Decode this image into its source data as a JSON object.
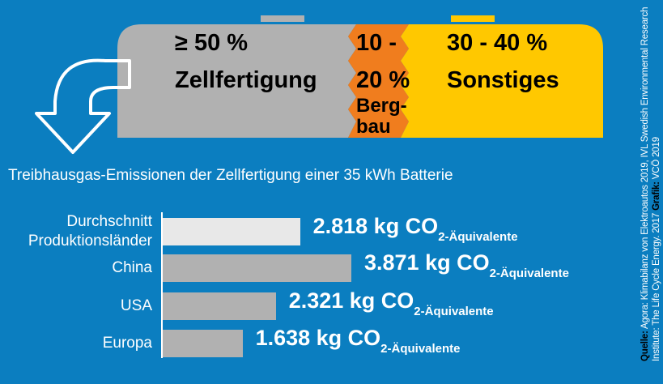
{
  "battery": {
    "gray": [
      "≥ 50 %",
      "Zellfertigung"
    ],
    "orange": [
      "10 -",
      "20 %",
      "Berg-",
      "bau"
    ],
    "yellow": [
      "30 - 40 %",
      "Sonstiges"
    ]
  },
  "chart_data": {
    "type": "bar",
    "orientation": "horizontal",
    "title": "Treibhausgas-Emissionen der Zellfertigung einer 35 kWh Batterie",
    "categories": [
      "Durchschnitt\nProduktionsländer",
      "China",
      "USA",
      "Europa"
    ],
    "values": [
      2818,
      3871,
      2321,
      1638
    ],
    "value_labels": [
      "2.818 kg CO",
      "3.871 kg CO",
      "2.321 kg CO",
      "1.638 kg CO"
    ],
    "value_label_subscript": "2-Äquivalente",
    "colors": [
      "#e8e8e8",
      "#b1b1b1",
      "#b1b1b1",
      "#b1b1b1"
    ]
  },
  "source": {
    "label": "Quelle:",
    "text": "Agora: Klimabilanz von Elektroautos 2019, IVL Swedish Environmental Research Institute: The Life Cycle Energy. 2017",
    "credit_label": "Grafik:",
    "credit": "VCÖ 2019"
  }
}
